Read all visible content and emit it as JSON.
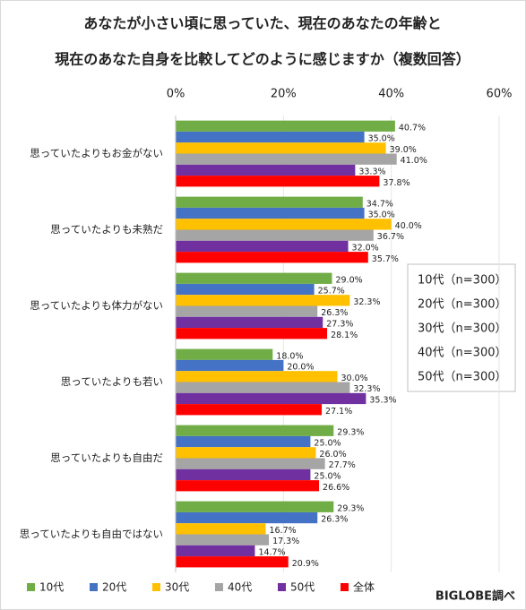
{
  "chart_data": {
    "type": "bar",
    "orientation": "horizontal",
    "title": [
      "あなたが小さい頃に思っていた、現在のあなたの年齢と",
      "現在のあなた自身を比較してどのように感じますか（複数回答）"
    ],
    "categories": [
      "思っていたよりもお金がない",
      "思っていたよりも未熟だ",
      "思っていたよりも体力がない",
      "思っていたよりも若い",
      "思っていたよりも自由だ",
      "思っていたよりも自由ではない"
    ],
    "series": [
      {
        "name": "10代",
        "color": "#70ad47",
        "values": [
          40.7,
          34.7,
          29.0,
          18.0,
          29.3,
          29.3
        ],
        "value_labels": [
          "40.7%",
          "34.7%",
          "29.0%",
          "18.0%",
          "29.3%",
          "29.3%"
        ]
      },
      {
        "name": "20代",
        "color": "#4472c4",
        "values": [
          35.0,
          35.0,
          25.7,
          20.0,
          25.0,
          26.3
        ],
        "value_labels": [
          "35.0%",
          "35.0%",
          "25.7%",
          "20.0%",
          "25.0%",
          "26.3%"
        ]
      },
      {
        "name": "30代",
        "color": "#ffc000",
        "values": [
          39.0,
          40.0,
          32.3,
          30.0,
          26.0,
          16.7
        ],
        "value_labels": [
          "39.0%",
          "40.0%",
          "32.3%",
          "30.0%",
          "26.0%",
          "16.7%"
        ]
      },
      {
        "name": "40代",
        "color": "#a5a5a5",
        "values": [
          41.0,
          36.7,
          26.3,
          32.3,
          27.7,
          17.3
        ],
        "value_labels": [
          "41.0%",
          "36.7%",
          "26.3%",
          "32.3%",
          "27.7%",
          "17.3%"
        ]
      },
      {
        "name": "50代",
        "color": "#7030a0",
        "values": [
          33.3,
          32.0,
          27.3,
          35.3,
          25.0,
          14.7
        ],
        "value_labels": [
          "33.3%",
          "32.0%",
          "27.3%",
          "35.3%",
          "25.0%",
          "14.7%"
        ]
      },
      {
        "name": "全体",
        "color": "#ff0000",
        "values": [
          37.8,
          35.7,
          28.1,
          27.1,
          26.6,
          20.9
        ],
        "value_labels": [
          "37.8%",
          "35.7%",
          "28.1%",
          "27.1%",
          "26.6%",
          "20.9%"
        ]
      }
    ],
    "xlim": [
      0,
      60
    ],
    "xticks": [
      {
        "value": 0,
        "label": "0%"
      },
      {
        "value": 20,
        "label": "20%"
      },
      {
        "value": 40,
        "label": "40%"
      },
      {
        "value": 60,
        "label": "60%"
      }
    ],
    "grid": true,
    "legend": "bottom",
    "sample_note": [
      "10代（n=300）",
      "20代（n=300）",
      "30代（n=300）",
      "40代（n=300）",
      "50代（n=300）"
    ],
    "source": "BIGLOBE調べ"
  }
}
